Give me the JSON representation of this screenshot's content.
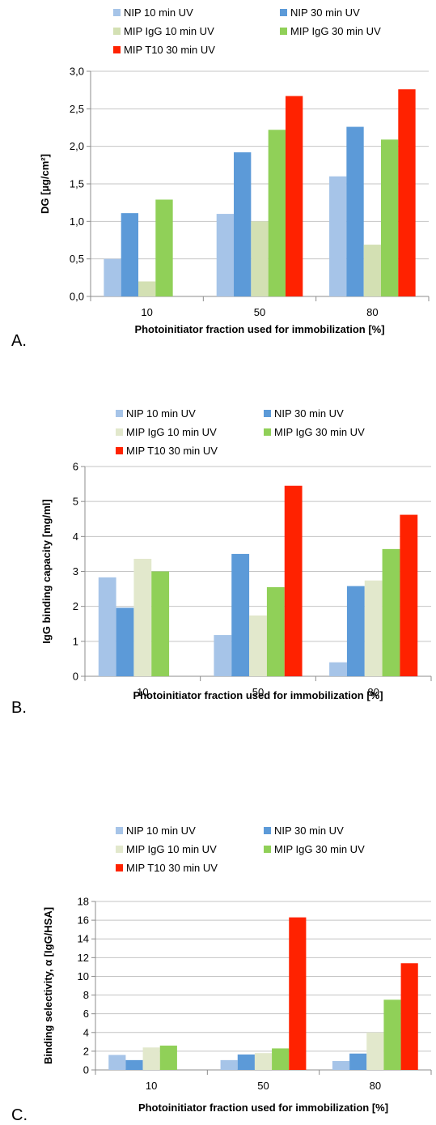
{
  "chart_data": [
    {
      "type": "bar",
      "panel_label": "A.",
      "categories": [
        "10",
        "50",
        "80"
      ],
      "series": [
        {
          "name": "NIP 10 min UV",
          "color": "#a6c4e8",
          "values": [
            0.5,
            1.1,
            1.6
          ]
        },
        {
          "name": "NIP 30 min UV",
          "color": "#5c9ad8",
          "values": [
            1.11,
            1.92,
            2.26
          ]
        },
        {
          "name": "MIP IgG 10 min UV",
          "color": "#d3e0b3",
          "values": [
            0.2,
            1.0,
            0.69
          ]
        },
        {
          "name": "MIP IgG 30 min UV",
          "color": "#90d058",
          "values": [
            1.29,
            2.22,
            2.09
          ]
        },
        {
          "name": "MIP T10 30 min UV",
          "color": "#ff2200",
          "values": [
            null,
            2.67,
            2.76
          ]
        }
      ],
      "xlabel": "Photoinitiator fraction used for immobilization [%]",
      "ylabel": "DG [µg/cm²]",
      "ylim": [
        0,
        3
      ],
      "yticks": [
        "0,0",
        "0,5",
        "1,0",
        "1,5",
        "2,0",
        "2,5",
        "3,0"
      ],
      "grid": true,
      "legend_position": "top"
    },
    {
      "type": "bar",
      "panel_label": "B.",
      "categories": [
        "10",
        "50",
        "80"
      ],
      "series": [
        {
          "name": "NIP 10 min UV",
          "color": "#a6c4e8",
          "values": [
            2.83,
            1.18,
            0.4
          ]
        },
        {
          "name": "NIP 30 min UV",
          "color": "#5c9ad8",
          "values": [
            1.96,
            3.5,
            2.58
          ]
        },
        {
          "name": "MIP IgG 10 min UV",
          "color": "#e2e8cc",
          "values": [
            3.36,
            1.74,
            2.74
          ]
        },
        {
          "name": "MIP IgG 30 min UV",
          "color": "#90d058",
          "values": [
            3.0,
            2.55,
            3.64
          ]
        },
        {
          "name": "MIP T10 30 min UV",
          "color": "#ff2200",
          "values": [
            null,
            5.45,
            4.62
          ]
        }
      ],
      "xlabel": "Photoinitiator fraction used for immobilization [%]",
      "ylabel": "IgG binding capacity [mg/ml]",
      "ylim": [
        0,
        6
      ],
      "yticks": [
        "0",
        "1",
        "2",
        "3",
        "4",
        "5",
        "6"
      ],
      "grid": true,
      "legend_position": "top"
    },
    {
      "type": "bar",
      "panel_label": "C.",
      "categories": [
        "10",
        "50",
        "80"
      ],
      "series": [
        {
          "name": "NIP 10 min UV",
          "color": "#a6c4e8",
          "values": [
            1.6,
            1.05,
            0.95
          ]
        },
        {
          "name": "NIP 30 min UV",
          "color": "#5c9ad8",
          "values": [
            1.05,
            1.65,
            1.75
          ]
        },
        {
          "name": "MIP IgG 10 min UV",
          "color": "#e2e8cc",
          "values": [
            2.4,
            1.8,
            4.0
          ]
        },
        {
          "name": "MIP IgG 30 min UV",
          "color": "#90d058",
          "values": [
            2.6,
            2.3,
            7.5
          ]
        },
        {
          "name": "MIP T10 30 min UV",
          "color": "#ff2200",
          "values": [
            null,
            16.3,
            11.4
          ]
        }
      ],
      "xlabel": "Photoinitiator fraction used for immobilization [%]",
      "ylabel": "Binding selectivity, α [IgG/HSA]",
      "ylim": [
        0,
        18
      ],
      "yticks": [
        "0",
        "2",
        "4",
        "6",
        "8",
        "10",
        "12",
        "14",
        "16",
        "18"
      ],
      "grid": true,
      "legend_position": "top"
    }
  ]
}
